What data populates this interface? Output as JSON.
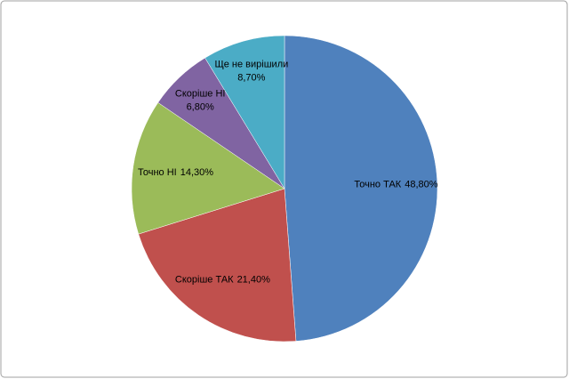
{
  "chart_data": {
    "type": "pie",
    "categories": [
      "Точно ТАК",
      "Скоріше ТАК",
      "Точно НІ",
      "Скоріше НІ",
      "Ще не вирішили"
    ],
    "values": [
      48.8,
      21.4,
      14.3,
      6.8,
      8.7
    ],
    "value_labels": [
      "48,80%",
      "21,40%",
      "14,30%",
      "6,80%",
      "8,70%"
    ],
    "colors": [
      "#4f81bd",
      "#c0504d",
      "#9bbb59",
      "#8064a2",
      "#4bacc6"
    ]
  }
}
